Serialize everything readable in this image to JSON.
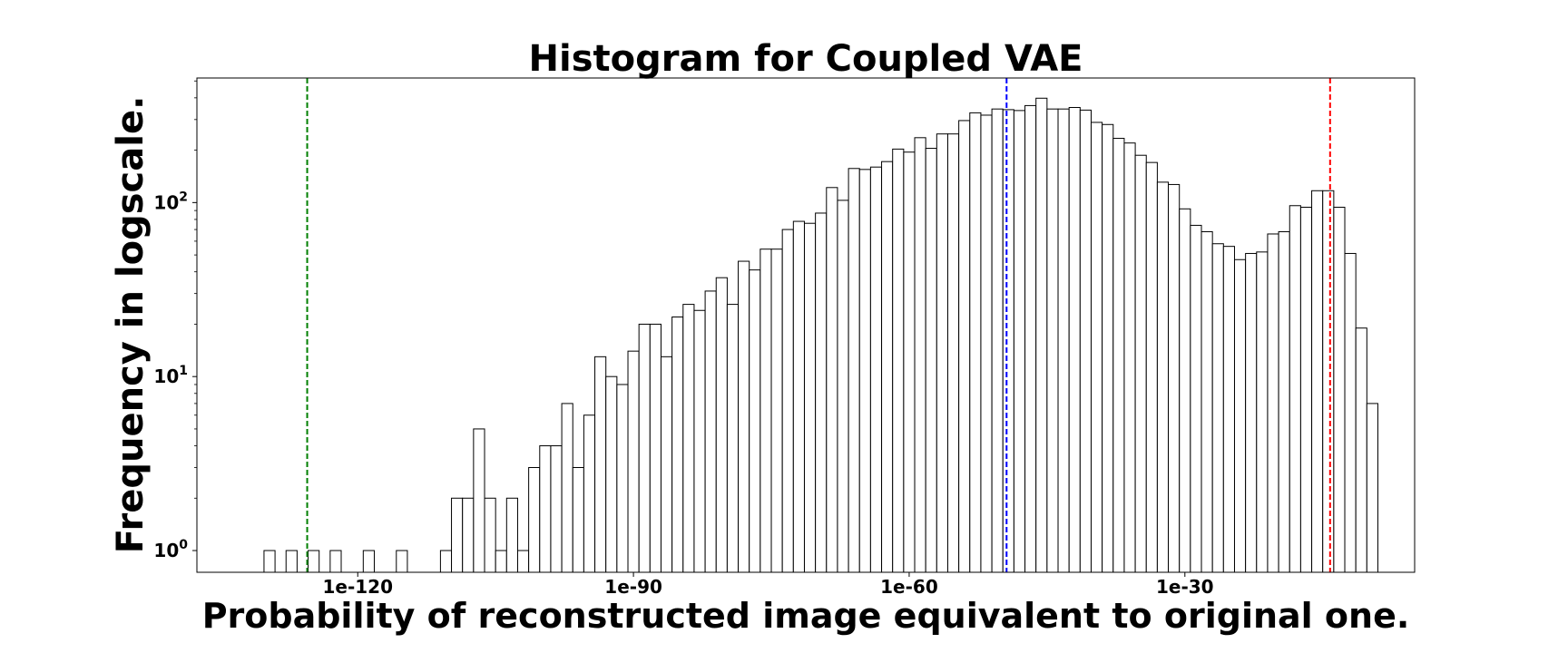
{
  "chart_data": {
    "type": "bar",
    "title": "Histogram for Coupled VAE",
    "xlabel": "Probability of reconstructed image equivalent to original one.",
    "ylabel": "Frequency in logscale.",
    "y_scale": "log",
    "x_scale": "log",
    "ylim": [
      0.75,
      520
    ],
    "xlim_log10": [
      -137.5,
      -5
    ],
    "x_tick_labels": [
      "1e-120",
      "1e-90",
      "1e-60",
      "1e-30"
    ],
    "x_tick_log10": [
      -120,
      -90,
      -60,
      -30
    ],
    "y_tick_values": [
      1,
      10,
      100
    ],
    "y_tick_labels": [
      {
        "base": "10",
        "exp": "0"
      },
      {
        "base": "10",
        "exp": "1"
      },
      {
        "base": "10",
        "exp": "2"
      }
    ],
    "bin_start_log10": -131.4,
    "bin_width_log10": 1.2,
    "counts": [
      0,
      1,
      0,
      1,
      0,
      1,
      0,
      1,
      0,
      0,
      1,
      0,
      0,
      1,
      0,
      0,
      0,
      1,
      2,
      2,
      5,
      2,
      1,
      2,
      1,
      3,
      4,
      4,
      7,
      3,
      6,
      13,
      10,
      9,
      14,
      20,
      20,
      13,
      22,
      26,
      24,
      31,
      37,
      26,
      46,
      41,
      54,
      54,
      70,
      78,
      76,
      87,
      122,
      103,
      157,
      155,
      160,
      172,
      203,
      195,
      236,
      205,
      248,
      248,
      296,
      328,
      318,
      345,
      342,
      338,
      361,
      398,
      345,
      345,
      352,
      340,
      289,
      281,
      234,
      220,
      187,
      170,
      131,
      127,
      92,
      74,
      68,
      58,
      56,
      47,
      51,
      52,
      66,
      68,
      96,
      94,
      117,
      117,
      94,
      51,
      19,
      7
    ],
    "vlines": [
      {
        "x_log10": -125.5,
        "color": "#008000",
        "style": "dashed"
      },
      {
        "x_log10": -49.4,
        "color": "#0000ff",
        "style": "dashed"
      },
      {
        "x_log10": -14.2,
        "color": "#ff0000",
        "style": "dashed"
      }
    ],
    "bar_fill": "#ffffff",
    "bar_edge": "#000000",
    "grid": false,
    "legend": "none"
  }
}
